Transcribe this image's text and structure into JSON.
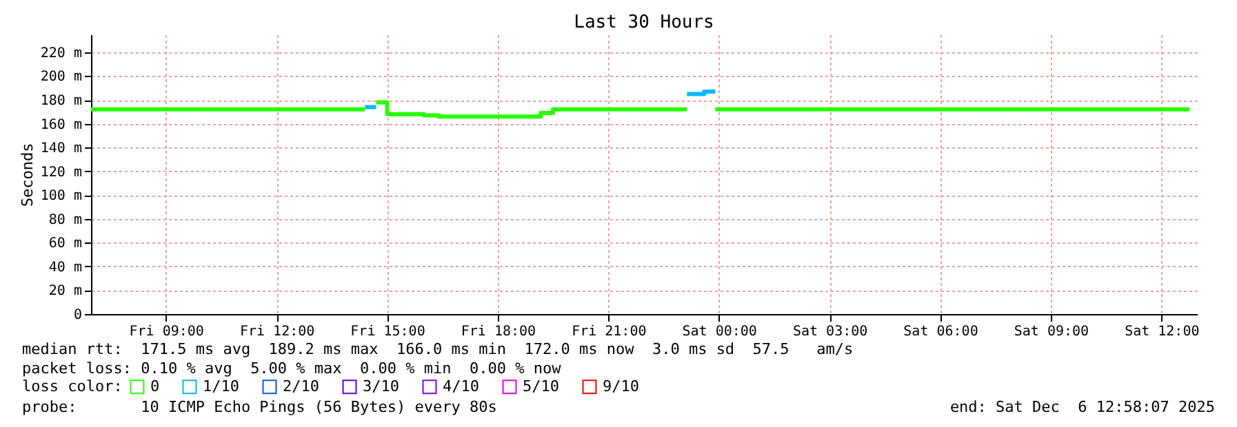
{
  "chart_data": {
    "type": "step",
    "title": "Last 30 Hours",
    "ylabel": "Seconds",
    "legend_title": "loss color:",
    "xlim": [
      "2025-12-05T06:58",
      "2025-12-06T12:58"
    ],
    "xticks": [
      {
        "value": "2025-12-05T09:00",
        "label": "Fri 09:00"
      },
      {
        "value": "2025-12-05T12:00",
        "label": "Fri 12:00"
      },
      {
        "value": "2025-12-05T15:00",
        "label": "Fri 15:00"
      },
      {
        "value": "2025-12-05T18:00",
        "label": "Fri 18:00"
      },
      {
        "value": "2025-12-05T21:00",
        "label": "Fri 21:00"
      },
      {
        "value": "2025-12-06T00:00",
        "label": "Sat 00:00"
      },
      {
        "value": "2025-12-06T03:00",
        "label": "Sat 03:00"
      },
      {
        "value": "2025-12-06T06:00",
        "label": "Sat 06:00"
      },
      {
        "value": "2025-12-06T09:00",
        "label": "Sat 09:00"
      },
      {
        "value": "2025-12-06T12:00",
        "label": "Sat 12:00"
      }
    ],
    "ylim": [
      0,
      235
    ],
    "yticks": [
      0,
      {
        "value": 20,
        "label": "20 m"
      },
      {
        "value": 40,
        "label": "40 m"
      },
      {
        "value": 60,
        "label": "60 m"
      },
      {
        "value": 80,
        "label": "80 m"
      },
      {
        "value": 100,
        "label": "100 m"
      },
      {
        "value": 120,
        "label": "120 m"
      },
      {
        "value": 140,
        "label": "140 m"
      },
      {
        "value": 160,
        "label": "160 m"
      },
      {
        "value": 180,
        "label": "180 m"
      },
      {
        "value": 200,
        "label": "200 m"
      },
      {
        "value": 220,
        "label": "220 m"
      }
    ],
    "grid": true,
    "legend": "bottom",
    "series": [
      {
        "name": "0",
        "color": "#26ff00",
        "x": [
          "2025-12-05T06:58",
          "2025-12-05T14:24",
          null,
          "2025-12-05T14:42",
          "2025-12-05T15:00",
          "2025-12-05T16:00",
          "2025-12-05T16:24",
          "2025-12-05T19:10",
          "2025-12-05T19:30",
          "2025-12-05T23:08",
          null,
          "2025-12-05T23:54",
          "2025-12-06T12:46"
        ],
        "values": [
          172,
          172,
          null,
          178,
          168,
          167,
          166,
          169,
          172,
          172,
          null,
          172,
          172
        ]
      },
      {
        "name": "1/10",
        "color": "#00b8ff",
        "x": [
          "2025-12-05T14:24",
          "2025-12-05T14:42",
          null,
          "2025-12-05T23:08",
          "2025-12-05T23:36",
          "2025-12-05T23:54"
        ],
        "values": [
          174,
          174,
          null,
          185,
          187,
          187
        ]
      },
      {
        "name": "2/10",
        "color": "#0059ff"
      },
      {
        "name": "3/10",
        "color": "#5e00ff"
      },
      {
        "name": "4/10",
        "color": "#7e00ff"
      },
      {
        "name": "5/10",
        "color": "#dd00ff"
      },
      {
        "name": "9/10",
        "color": "#ff0000"
      }
    ],
    "annotations": [
      "median rtt:  171.5 ms avg  189.2 ms max  166.0 ms min  172.0 ms now  3.0 ms sd  57.5   am/s",
      "packet loss: 0.10 % avg  5.00 % max  0.00 % min  0.00 % now",
      "probe:       10 ICMP Echo Pings (56 Bytes) every 80s",
      "end: Sat Dec  6 12:58:07 2025"
    ]
  }
}
